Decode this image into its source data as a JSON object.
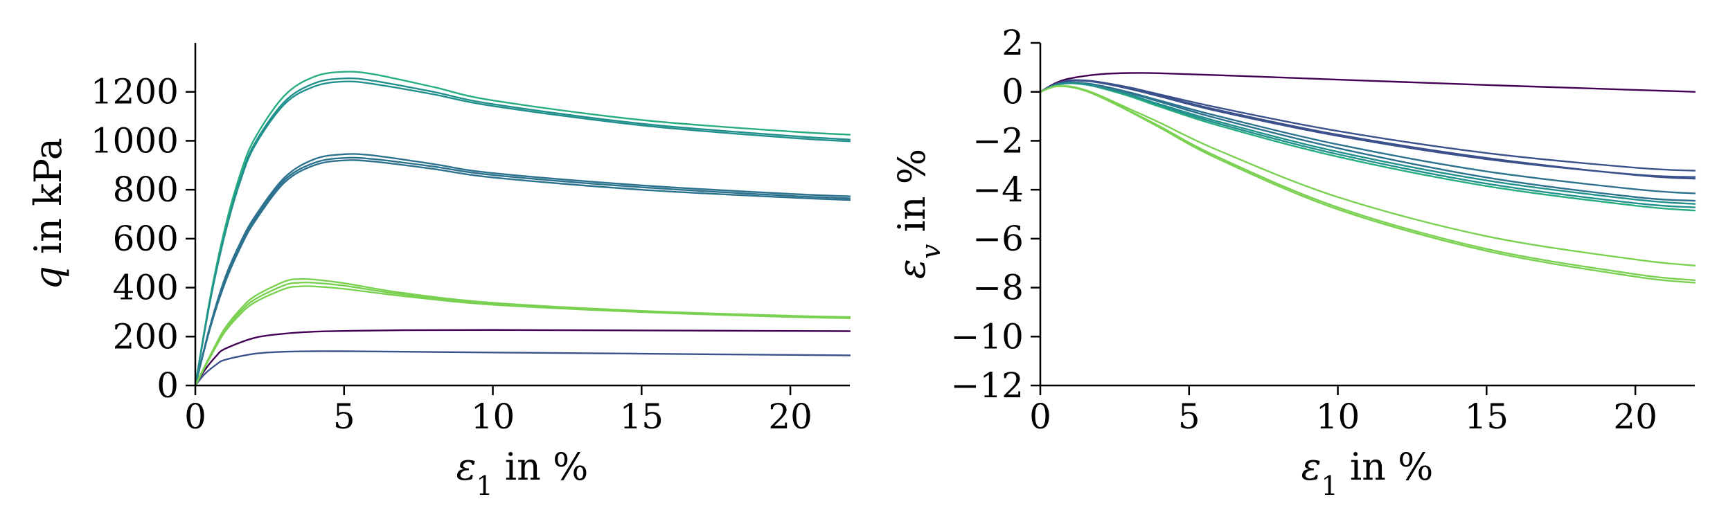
{
  "figure": {
    "colors": {
      "s1": "#440154",
      "s2": "#3b518b",
      "s3": "#2c728e",
      "s4": "#21908d",
      "s5": "#27ad81",
      "s6": "#7ad151"
    }
  },
  "chart_data": [
    {
      "type": "line",
      "ylabel_var": "q",
      "ylabel_rest": " in kPa",
      "xlabel_var": "ε",
      "xlabel_sub": "1",
      "xlabel_rest": " in %",
      "xlim": [
        0,
        22
      ],
      "ylim": [
        0,
        1400
      ],
      "xticks": [
        0,
        5,
        10,
        15,
        20
      ],
      "yticks": [
        0,
        200,
        400,
        600,
        800,
        1000,
        1200
      ],
      "xtick_labels": [
        "0",
        "5",
        "10",
        "15",
        "20"
      ],
      "ytick_labels": [
        "0",
        "200",
        "400",
        "600",
        "800",
        "1000",
        "1200"
      ],
      "grid": false,
      "series": [
        {
          "color_key": "s1",
          "x": [
            0,
            0.3,
            0.7,
            1,
            2,
            3,
            4,
            5,
            7,
            10,
            15,
            20,
            22
          ],
          "y": [
            0,
            60,
            120,
            150,
            195,
            212,
            220,
            223,
            226,
            227,
            225,
            223,
            222
          ]
        },
        {
          "color_key": "s2",
          "x": [
            0,
            0.3,
            0.7,
            1,
            2,
            3,
            4,
            5,
            7,
            10,
            15,
            20,
            22
          ],
          "y": [
            0,
            45,
            85,
            105,
            130,
            138,
            140,
            140,
            138,
            135,
            130,
            125,
            123
          ]
        },
        {
          "color_key": "s3",
          "x": [
            0,
            0.5,
            1,
            1.5,
            2,
            3,
            4,
            5,
            6,
            8,
            10,
            15,
            20,
            22
          ],
          "y": [
            0,
            240,
            430,
            570,
            680,
            840,
            910,
            930,
            925,
            895,
            860,
            810,
            775,
            765
          ]
        },
        {
          "color_key": "s3",
          "x": [
            0,
            0.5,
            1,
            1.5,
            2,
            3,
            4,
            5,
            6,
            8,
            10,
            15,
            20,
            22
          ],
          "y": [
            0,
            235,
            420,
            560,
            670,
            830,
            900,
            920,
            915,
            885,
            850,
            800,
            768,
            758
          ]
        },
        {
          "color_key": "s3",
          "x": [
            0,
            0.5,
            1,
            1.5,
            2,
            3,
            4,
            5,
            6,
            8,
            10,
            15,
            20,
            22
          ],
          "y": [
            0,
            245,
            440,
            580,
            690,
            850,
            925,
            945,
            940,
            905,
            868,
            818,
            783,
            773
          ]
        },
        {
          "color_key": "s4",
          "x": [
            0,
            0.5,
            1,
            1.5,
            2,
            3,
            4,
            5,
            6,
            8,
            10,
            15,
            20,
            22
          ],
          "y": [
            0,
            350,
            630,
            840,
            990,
            1160,
            1235,
            1255,
            1245,
            1200,
            1150,
            1070,
            1020,
            1005
          ]
        },
        {
          "color_key": "s5",
          "x": [
            0,
            0.5,
            1,
            1.5,
            2,
            3,
            4,
            5,
            6,
            8,
            10,
            15,
            20,
            22
          ],
          "y": [
            0,
            360,
            645,
            860,
            1010,
            1185,
            1262,
            1282,
            1272,
            1220,
            1165,
            1085,
            1038,
            1025
          ]
        },
        {
          "color_key": "s4",
          "x": [
            0,
            0.5,
            1,
            1.5,
            2,
            3,
            4,
            5,
            6,
            8,
            10,
            15,
            20,
            22
          ],
          "y": [
            0,
            345,
            620,
            830,
            980,
            1150,
            1222,
            1242,
            1232,
            1190,
            1142,
            1063,
            1012,
            998
          ]
        },
        {
          "color_key": "s6",
          "x": [
            0,
            0.3,
            0.7,
            1,
            1.5,
            2,
            3,
            3.5,
            4,
            5,
            7,
            10,
            15,
            20,
            22
          ],
          "y": [
            0,
            70,
            160,
            220,
            290,
            340,
            395,
            405,
            405,
            395,
            365,
            330,
            300,
            280,
            275
          ]
        },
        {
          "color_key": "s6",
          "x": [
            0,
            0.3,
            0.7,
            1,
            1.5,
            2,
            3,
            3.5,
            4,
            5,
            7,
            10,
            15,
            20,
            22
          ],
          "y": [
            0,
            72,
            165,
            228,
            300,
            352,
            410,
            420,
            420,
            408,
            372,
            335,
            303,
            283,
            277
          ]
        },
        {
          "color_key": "s6",
          "x": [
            0,
            0.3,
            0.7,
            1,
            1.5,
            2,
            3,
            3.5,
            4,
            5,
            7,
            10,
            15,
            20,
            22
          ],
          "y": [
            0,
            75,
            170,
            235,
            310,
            365,
            425,
            435,
            433,
            418,
            378,
            338,
            305,
            285,
            280
          ]
        }
      ]
    },
    {
      "type": "line",
      "ylabel_var": "ε",
      "ylabel_sub": "v",
      "ylabel_rest": " in %",
      "xlabel_var": "ε",
      "xlabel_sub": "1",
      "xlabel_rest": " in %",
      "xlim": [
        0,
        22
      ],
      "ylim": [
        -12,
        2
      ],
      "xticks": [
        0,
        5,
        10,
        15,
        20
      ],
      "yticks": [
        2,
        0,
        -2,
        -4,
        -6,
        -8,
        -10,
        -12
      ],
      "xtick_labels": [
        "0",
        "5",
        "10",
        "15",
        "20"
      ],
      "ytick_labels": [
        "2",
        "0",
        "−2",
        "−4",
        "−6",
        "−8",
        "−10",
        "−12"
      ],
      "grid": false,
      "series": [
        {
          "color_key": "s1",
          "x": [
            0,
            0.5,
            1,
            2,
            3,
            4,
            6,
            10,
            15,
            20,
            22
          ],
          "y": [
            0,
            0.35,
            0.55,
            0.72,
            0.77,
            0.76,
            0.68,
            0.5,
            0.28,
            0.08,
            0.0
          ]
        },
        {
          "color_key": "s2",
          "x": [
            0,
            0.5,
            1,
            1.5,
            2,
            3,
            4,
            6,
            10,
            15,
            20,
            22
          ],
          "y": [
            0,
            0.3,
            0.45,
            0.45,
            0.38,
            0.15,
            -0.15,
            -0.75,
            -1.75,
            -2.7,
            -3.4,
            -3.55
          ]
        },
        {
          "color_key": "s2",
          "x": [
            0,
            0.5,
            1,
            1.5,
            2,
            3,
            4,
            6,
            10,
            15,
            20,
            22
          ],
          "y": [
            0,
            0.3,
            0.45,
            0.45,
            0.37,
            0.12,
            -0.18,
            -0.8,
            -1.8,
            -2.75,
            -3.38,
            -3.48
          ]
        },
        {
          "color_key": "s2",
          "x": [
            0,
            0.5,
            1,
            1.5,
            2,
            3,
            4,
            6,
            10,
            15,
            20,
            22
          ],
          "y": [
            0,
            0.32,
            0.47,
            0.47,
            0.4,
            0.18,
            -0.1,
            -0.65,
            -1.6,
            -2.5,
            -3.1,
            -3.22
          ]
        },
        {
          "color_key": "s3",
          "x": [
            0,
            0.5,
            1,
            1.5,
            2,
            3,
            4,
            6,
            10,
            15,
            20,
            22
          ],
          "y": [
            0,
            0.28,
            0.38,
            0.35,
            0.25,
            -0.05,
            -0.4,
            -1.1,
            -2.3,
            -3.5,
            -4.3,
            -4.45
          ]
        },
        {
          "color_key": "s3",
          "x": [
            0,
            0.5,
            1,
            1.5,
            2,
            3,
            4,
            6,
            10,
            15,
            20,
            22
          ],
          "y": [
            0,
            0.28,
            0.38,
            0.35,
            0.26,
            -0.02,
            -0.35,
            -1.0,
            -2.15,
            -3.25,
            -3.98,
            -4.15
          ]
        },
        {
          "color_key": "s4",
          "x": [
            0,
            0.5,
            1,
            1.5,
            2,
            3,
            4,
            6,
            10,
            15,
            20,
            22
          ],
          "y": [
            0,
            0.27,
            0.35,
            0.3,
            0.18,
            -0.15,
            -0.55,
            -1.3,
            -2.55,
            -3.75,
            -4.55,
            -4.72
          ]
        },
        {
          "color_key": "s5",
          "x": [
            0,
            0.5,
            1,
            1.5,
            2,
            3,
            4,
            6,
            10,
            15,
            20,
            22
          ],
          "y": [
            0,
            0.27,
            0.35,
            0.3,
            0.17,
            -0.18,
            -0.6,
            -1.38,
            -2.65,
            -3.85,
            -4.65,
            -4.85
          ]
        },
        {
          "color_key": "s4",
          "x": [
            0,
            0.5,
            1,
            1.5,
            2,
            3,
            4,
            6,
            10,
            15,
            20,
            22
          ],
          "y": [
            0,
            0.27,
            0.36,
            0.31,
            0.19,
            -0.12,
            -0.5,
            -1.22,
            -2.45,
            -3.62,
            -4.4,
            -4.58
          ]
        },
        {
          "color_key": "s6",
          "x": [
            0,
            0.5,
            1,
            1.5,
            2,
            3,
            4,
            6,
            10,
            15,
            20,
            22
          ],
          "y": [
            0,
            0.22,
            0.2,
            0.05,
            -0.2,
            -0.8,
            -1.45,
            -2.75,
            -4.8,
            -6.5,
            -7.55,
            -7.8
          ]
        },
        {
          "color_key": "s6",
          "x": [
            0,
            0.5,
            1,
            1.5,
            2,
            3,
            4,
            6,
            10,
            15,
            20,
            22
          ],
          "y": [
            0,
            0.22,
            0.2,
            0.05,
            -0.19,
            -0.78,
            -1.4,
            -2.68,
            -4.72,
            -6.42,
            -7.45,
            -7.7
          ]
        },
        {
          "color_key": "s6",
          "x": [
            0,
            0.5,
            1,
            1.5,
            2,
            3,
            4,
            6,
            10,
            15,
            20,
            22
          ],
          "y": [
            0,
            0.23,
            0.22,
            0.08,
            -0.15,
            -0.7,
            -1.25,
            -2.4,
            -4.3,
            -5.9,
            -6.85,
            -7.1
          ]
        }
      ]
    }
  ]
}
